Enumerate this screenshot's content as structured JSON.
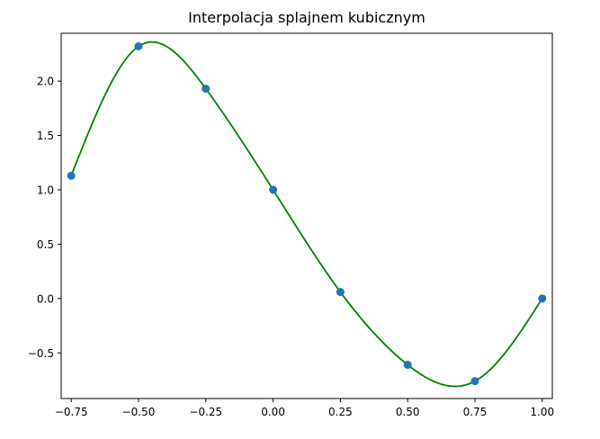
{
  "chart_data": {
    "type": "line",
    "title": "Interpolacja splajnem kubicznym",
    "xlabel": "",
    "ylabel": "",
    "xlim": [
      -0.7875,
      1.0375
    ],
    "ylim": [
      -0.92,
      2.44
    ],
    "x_ticks": [
      -0.75,
      -0.5,
      -0.25,
      0.0,
      0.25,
      0.5,
      0.75,
      1.0
    ],
    "x_tick_labels": [
      "−0.75",
      "−0.50",
      "−0.25",
      "0.00",
      "0.25",
      "0.50",
      "0.75",
      "1.00"
    ],
    "y_ticks": [
      -0.5,
      0.0,
      0.5,
      1.0,
      1.5,
      2.0
    ],
    "y_tick_labels": [
      "−0.5",
      "0.0",
      "0.5",
      "1.0",
      "1.5",
      "2.0"
    ],
    "grid": false,
    "legend": "none",
    "series": [
      {
        "kind": "scatter",
        "color": "#1f77b4",
        "x": [
          -0.75,
          -0.5,
          -0.25,
          0.0,
          0.25,
          0.5,
          0.75,
          1.0
        ],
        "y": [
          1.13,
          2.32,
          1.93,
          1.0,
          0.06,
          -0.61,
          -0.76,
          0.0
        ]
      },
      {
        "kind": "line",
        "color": "#008000",
        "x": [
          -0.75,
          -0.5,
          -0.25,
          0.0,
          0.25,
          0.5,
          0.75,
          1.0
        ],
        "y": [
          1.13,
          2.32,
          1.93,
          1.0,
          0.06,
          -0.61,
          -0.76,
          0.0
        ]
      }
    ]
  }
}
